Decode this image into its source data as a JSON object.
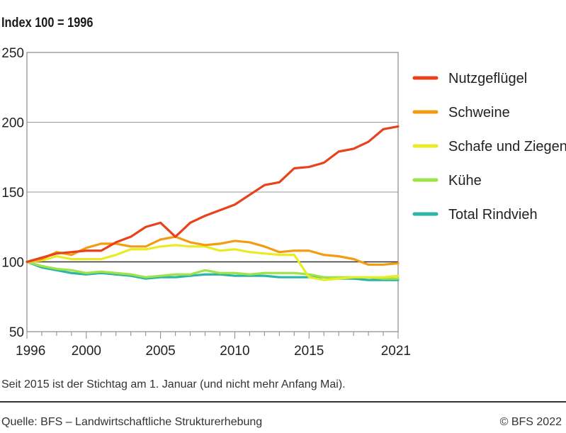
{
  "chart_data": {
    "type": "line",
    "unit_label": "Index 100 = 1996",
    "ylim": [
      50,
      250
    ],
    "yticks": [
      50,
      100,
      150,
      200,
      250
    ],
    "xlim": [
      1996,
      2021
    ],
    "xticks": [
      1996,
      2000,
      2005,
      2010,
      2015,
      2021
    ],
    "grid": "horizontal",
    "legend_position": "right",
    "x": [
      1996,
      1997,
      1998,
      1999,
      2000,
      2001,
      2002,
      2003,
      2004,
      2005,
      2006,
      2007,
      2008,
      2009,
      2010,
      2011,
      2012,
      2013,
      2014,
      2015,
      2016,
      2017,
      2018,
      2019,
      2020,
      2021
    ],
    "series": [
      {
        "name": "Nutzgeflügel",
        "color": "#e8411c",
        "values": [
          100,
          103,
          106,
          107,
          108,
          108,
          114,
          118,
          125,
          128,
          118,
          128,
          133,
          137,
          141,
          148,
          155,
          157,
          167,
          168,
          171,
          179,
          181,
          186,
          195,
          197
        ]
      },
      {
        "name": "Schweine",
        "color": "#f39c12",
        "values": [
          100,
          102,
          107,
          105,
          110,
          113,
          113,
          111,
          111,
          116,
          118,
          114,
          112,
          113,
          115,
          114,
          111,
          107,
          108,
          108,
          105,
          104,
          102,
          98,
          98,
          99
        ]
      },
      {
        "name": "Schafe und Ziegen",
        "color": "#e9ec25",
        "values": [
          100,
          101,
          104,
          102,
          102,
          102,
          105,
          109,
          109,
          111,
          112,
          111,
          111,
          108,
          109,
          107,
          106,
          105,
          105,
          89,
          87,
          88,
          89,
          89,
          89,
          90
        ]
      },
      {
        "name": "Kühe",
        "color": "#9ee34a",
        "values": [
          100,
          97,
          95,
          94,
          92,
          93,
          92,
          91,
          89,
          90,
          91,
          91,
          94,
          92,
          92,
          91,
          92,
          92,
          92,
          91,
          89,
          89,
          89,
          89,
          88,
          88
        ]
      },
      {
        "name": "Total Rindvieh",
        "color": "#2bb5a6",
        "values": [
          100,
          96,
          94,
          92,
          91,
          92,
          91,
          90,
          88,
          89,
          89,
          90,
          91,
          91,
          90,
          90,
          90,
          89,
          89,
          89,
          89,
          88,
          88,
          87,
          87,
          87
        ]
      }
    ],
    "reference_line": 100
  },
  "note": "Seit 2015 ist der Stichtag am 1. Januar (und nicht mehr Anfang Mai).",
  "footer": {
    "source": "Quelle: BFS – Landwirtschaftliche Strukturerhebung",
    "copyright": "© BFS 2022"
  }
}
